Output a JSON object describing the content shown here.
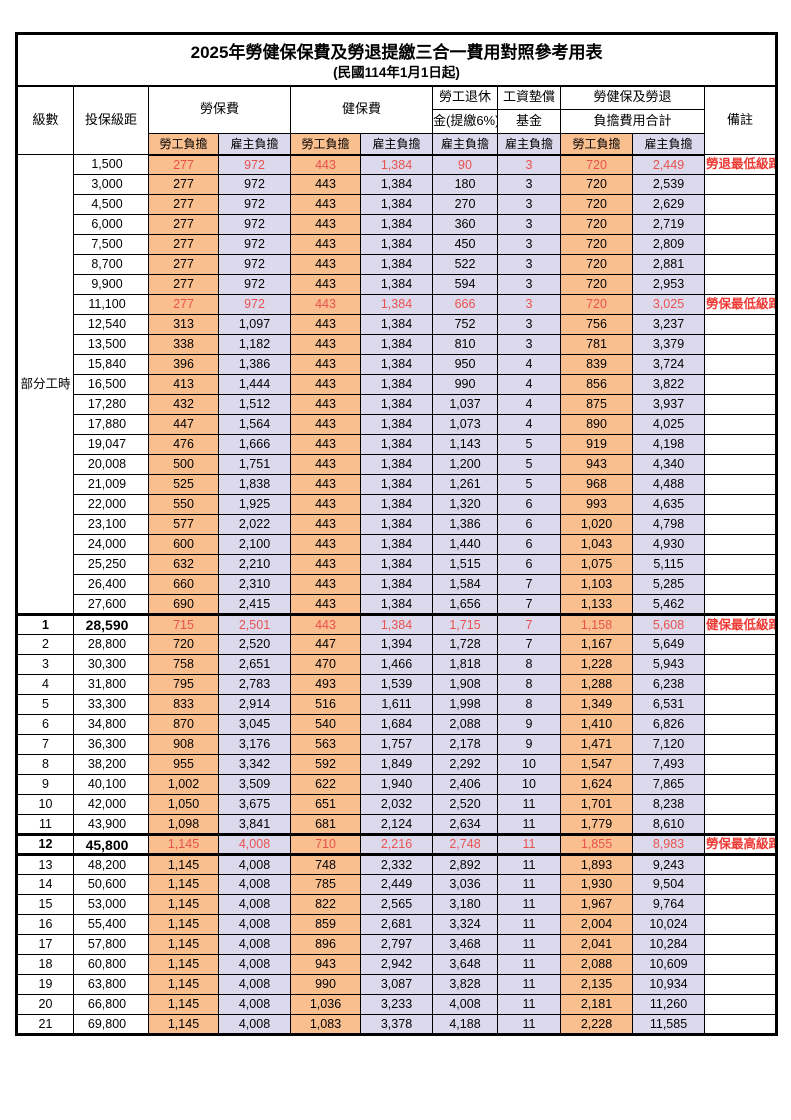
{
  "title": "2025年勞健保保費及勞退提繳三合一費用對照參考用表",
  "subtitle": "(民國114年1月1日起)",
  "colors": {
    "employee_column_bg": "#FABF8F",
    "employer_column_bg": "#DCD9EC",
    "highlight_value_red": "#E8524E",
    "remark_red": "#EE3B36",
    "border": "#000000"
  },
  "headers": {
    "level": "級數",
    "bracket": "投保級距",
    "labor_insurance": "勞保費",
    "health_insurance": "健保費",
    "pension_line1": "勞工退休",
    "pension_line2": "金(提繳6%)",
    "wage_fund_line1": "工資墊償",
    "wage_fund_line2": "基金",
    "total_line1": "勞健保及勞退",
    "total_line2": "負擔費用合計",
    "employee": "勞工負擔",
    "employer": "雇主負擔",
    "remark": "備註"
  },
  "part_time": {
    "label": "部分工時",
    "span": 23
  },
  "value_columns": [
    "勞保費-勞工負擔",
    "勞保費-雇主負擔",
    "健保費-勞工負擔",
    "健保費-雇主負擔",
    "勞工退休金(提繳6%)-雇主負擔",
    "工資墊償基金-雇主負擔",
    "合計-勞工負擔",
    "合計-雇主負擔"
  ],
  "rows": [
    {
      "bk": "1,500",
      "v": [
        "277",
        "972",
        "443",
        "1,384",
        "90",
        "3",
        "720",
        "2,449"
      ],
      "rm": "勞退最低級距",
      "hl": true
    },
    {
      "bk": "3,000",
      "v": [
        "277",
        "972",
        "443",
        "1,384",
        "180",
        "3",
        "720",
        "2,539"
      ]
    },
    {
      "bk": "4,500",
      "v": [
        "277",
        "972",
        "443",
        "1,384",
        "270",
        "3",
        "720",
        "2,629"
      ]
    },
    {
      "bk": "6,000",
      "v": [
        "277",
        "972",
        "443",
        "1,384",
        "360",
        "3",
        "720",
        "2,719"
      ]
    },
    {
      "bk": "7,500",
      "v": [
        "277",
        "972",
        "443",
        "1,384",
        "450",
        "3",
        "720",
        "2,809"
      ]
    },
    {
      "bk": "8,700",
      "v": [
        "277",
        "972",
        "443",
        "1,384",
        "522",
        "3",
        "720",
        "2,881"
      ]
    },
    {
      "bk": "9,900",
      "v": [
        "277",
        "972",
        "443",
        "1,384",
        "594",
        "3",
        "720",
        "2,953"
      ]
    },
    {
      "bk": "11,100",
      "v": [
        "277",
        "972",
        "443",
        "1,384",
        "666",
        "3",
        "720",
        "3,025"
      ],
      "rm": "勞保最低級距",
      "hl": true
    },
    {
      "bk": "12,540",
      "v": [
        "313",
        "1,097",
        "443",
        "1,384",
        "752",
        "3",
        "756",
        "3,237"
      ]
    },
    {
      "bk": "13,500",
      "v": [
        "338",
        "1,182",
        "443",
        "1,384",
        "810",
        "3",
        "781",
        "3,379"
      ]
    },
    {
      "bk": "15,840",
      "v": [
        "396",
        "1,386",
        "443",
        "1,384",
        "950",
        "4",
        "839",
        "3,724"
      ]
    },
    {
      "bk": "16,500",
      "v": [
        "413",
        "1,444",
        "443",
        "1,384",
        "990",
        "4",
        "856",
        "3,822"
      ]
    },
    {
      "bk": "17,280",
      "v": [
        "432",
        "1,512",
        "443",
        "1,384",
        "1,037",
        "4",
        "875",
        "3,937"
      ]
    },
    {
      "bk": "17,880",
      "v": [
        "447",
        "1,564",
        "443",
        "1,384",
        "1,073",
        "4",
        "890",
        "4,025"
      ]
    },
    {
      "bk": "19,047",
      "v": [
        "476",
        "1,666",
        "443",
        "1,384",
        "1,143",
        "5",
        "919",
        "4,198"
      ]
    },
    {
      "bk": "20,008",
      "v": [
        "500",
        "1,751",
        "443",
        "1,384",
        "1,200",
        "5",
        "943",
        "4,340"
      ]
    },
    {
      "bk": "21,009",
      "v": [
        "525",
        "1,838",
        "443",
        "1,384",
        "1,261",
        "5",
        "968",
        "4,488"
      ]
    },
    {
      "bk": "22,000",
      "v": [
        "550",
        "1,925",
        "443",
        "1,384",
        "1,320",
        "6",
        "993",
        "4,635"
      ]
    },
    {
      "bk": "23,100",
      "v": [
        "577",
        "2,022",
        "443",
        "1,384",
        "1,386",
        "6",
        "1,020",
        "4,798"
      ]
    },
    {
      "bk": "24,000",
      "v": [
        "600",
        "2,100",
        "443",
        "1,384",
        "1,440",
        "6",
        "1,043",
        "4,930"
      ]
    },
    {
      "bk": "25,250",
      "v": [
        "632",
        "2,210",
        "443",
        "1,384",
        "1,515",
        "6",
        "1,075",
        "5,115"
      ]
    },
    {
      "bk": "26,400",
      "v": [
        "660",
        "2,310",
        "443",
        "1,384",
        "1,584",
        "7",
        "1,103",
        "5,285"
      ]
    },
    {
      "bk": "27,600",
      "v": [
        "690",
        "2,415",
        "443",
        "1,384",
        "1,656",
        "7",
        "1,133",
        "5,462"
      ]
    },
    {
      "lv": "1",
      "bk": "28,590",
      "v": [
        "715",
        "2,501",
        "443",
        "1,384",
        "1,715",
        "7",
        "1,158",
        "5,608"
      ],
      "rm": "健保最低級距",
      "hl": true,
      "b": true,
      "sec": "top"
    },
    {
      "lv": "2",
      "bk": "28,800",
      "v": [
        "720",
        "2,520",
        "447",
        "1,394",
        "1,728",
        "7",
        "1,167",
        "5,649"
      ]
    },
    {
      "lv": "3",
      "bk": "30,300",
      "v": [
        "758",
        "2,651",
        "470",
        "1,466",
        "1,818",
        "8",
        "1,228",
        "5,943"
      ]
    },
    {
      "lv": "4",
      "bk": "31,800",
      "v": [
        "795",
        "2,783",
        "493",
        "1,539",
        "1,908",
        "8",
        "1,288",
        "6,238"
      ]
    },
    {
      "lv": "5",
      "bk": "33,300",
      "v": [
        "833",
        "2,914",
        "516",
        "1,611",
        "1,998",
        "8",
        "1,349",
        "6,531"
      ]
    },
    {
      "lv": "6",
      "bk": "34,800",
      "v": [
        "870",
        "3,045",
        "540",
        "1,684",
        "2,088",
        "9",
        "1,410",
        "6,826"
      ]
    },
    {
      "lv": "7",
      "bk": "36,300",
      "v": [
        "908",
        "3,176",
        "563",
        "1,757",
        "2,178",
        "9",
        "1,471",
        "7,120"
      ]
    },
    {
      "lv": "8",
      "bk": "38,200",
      "v": [
        "955",
        "3,342",
        "592",
        "1,849",
        "2,292",
        "10",
        "1,547",
        "7,493"
      ]
    },
    {
      "lv": "9",
      "bk": "40,100",
      "v": [
        "1,002",
        "3,509",
        "622",
        "1,940",
        "2,406",
        "10",
        "1,624",
        "7,865"
      ]
    },
    {
      "lv": "10",
      "bk": "42,000",
      "v": [
        "1,050",
        "3,675",
        "651",
        "2,032",
        "2,520",
        "11",
        "1,701",
        "8,238"
      ]
    },
    {
      "lv": "11",
      "bk": "43,900",
      "v": [
        "1,098",
        "3,841",
        "681",
        "2,124",
        "2,634",
        "11",
        "1,779",
        "8,610"
      ]
    },
    {
      "lv": "12",
      "bk": "45,800",
      "v": [
        "1,145",
        "4,008",
        "710",
        "2,216",
        "2,748",
        "11",
        "1,855",
        "8,983"
      ],
      "rm": "勞保最高級距",
      "hl": true,
      "b": true,
      "sec": "box"
    },
    {
      "lv": "13",
      "bk": "48,200",
      "v": [
        "1,145",
        "4,008",
        "748",
        "2,332",
        "2,892",
        "11",
        "1,893",
        "9,243"
      ]
    },
    {
      "lv": "14",
      "bk": "50,600",
      "v": [
        "1,145",
        "4,008",
        "785",
        "2,449",
        "3,036",
        "11",
        "1,930",
        "9,504"
      ]
    },
    {
      "lv": "15",
      "bk": "53,000",
      "v": [
        "1,145",
        "4,008",
        "822",
        "2,565",
        "3,180",
        "11",
        "1,967",
        "9,764"
      ]
    },
    {
      "lv": "16",
      "bk": "55,400",
      "v": [
        "1,145",
        "4,008",
        "859",
        "2,681",
        "3,324",
        "11",
        "2,004",
        "10,024"
      ]
    },
    {
      "lv": "17",
      "bk": "57,800",
      "v": [
        "1,145",
        "4,008",
        "896",
        "2,797",
        "3,468",
        "11",
        "2,041",
        "10,284"
      ]
    },
    {
      "lv": "18",
      "bk": "60,800",
      "v": [
        "1,145",
        "4,008",
        "943",
        "2,942",
        "3,648",
        "11",
        "2,088",
        "10,609"
      ]
    },
    {
      "lv": "19",
      "bk": "63,800",
      "v": [
        "1,145",
        "4,008",
        "990",
        "3,087",
        "3,828",
        "11",
        "2,135",
        "10,934"
      ]
    },
    {
      "lv": "20",
      "bk": "66,800",
      "v": [
        "1,145",
        "4,008",
        "1,036",
        "3,233",
        "4,008",
        "11",
        "2,181",
        "11,260"
      ]
    },
    {
      "lv": "21",
      "bk": "69,800",
      "v": [
        "1,145",
        "4,008",
        "1,083",
        "3,378",
        "4,188",
        "11",
        "2,228",
        "11,585"
      ]
    }
  ]
}
